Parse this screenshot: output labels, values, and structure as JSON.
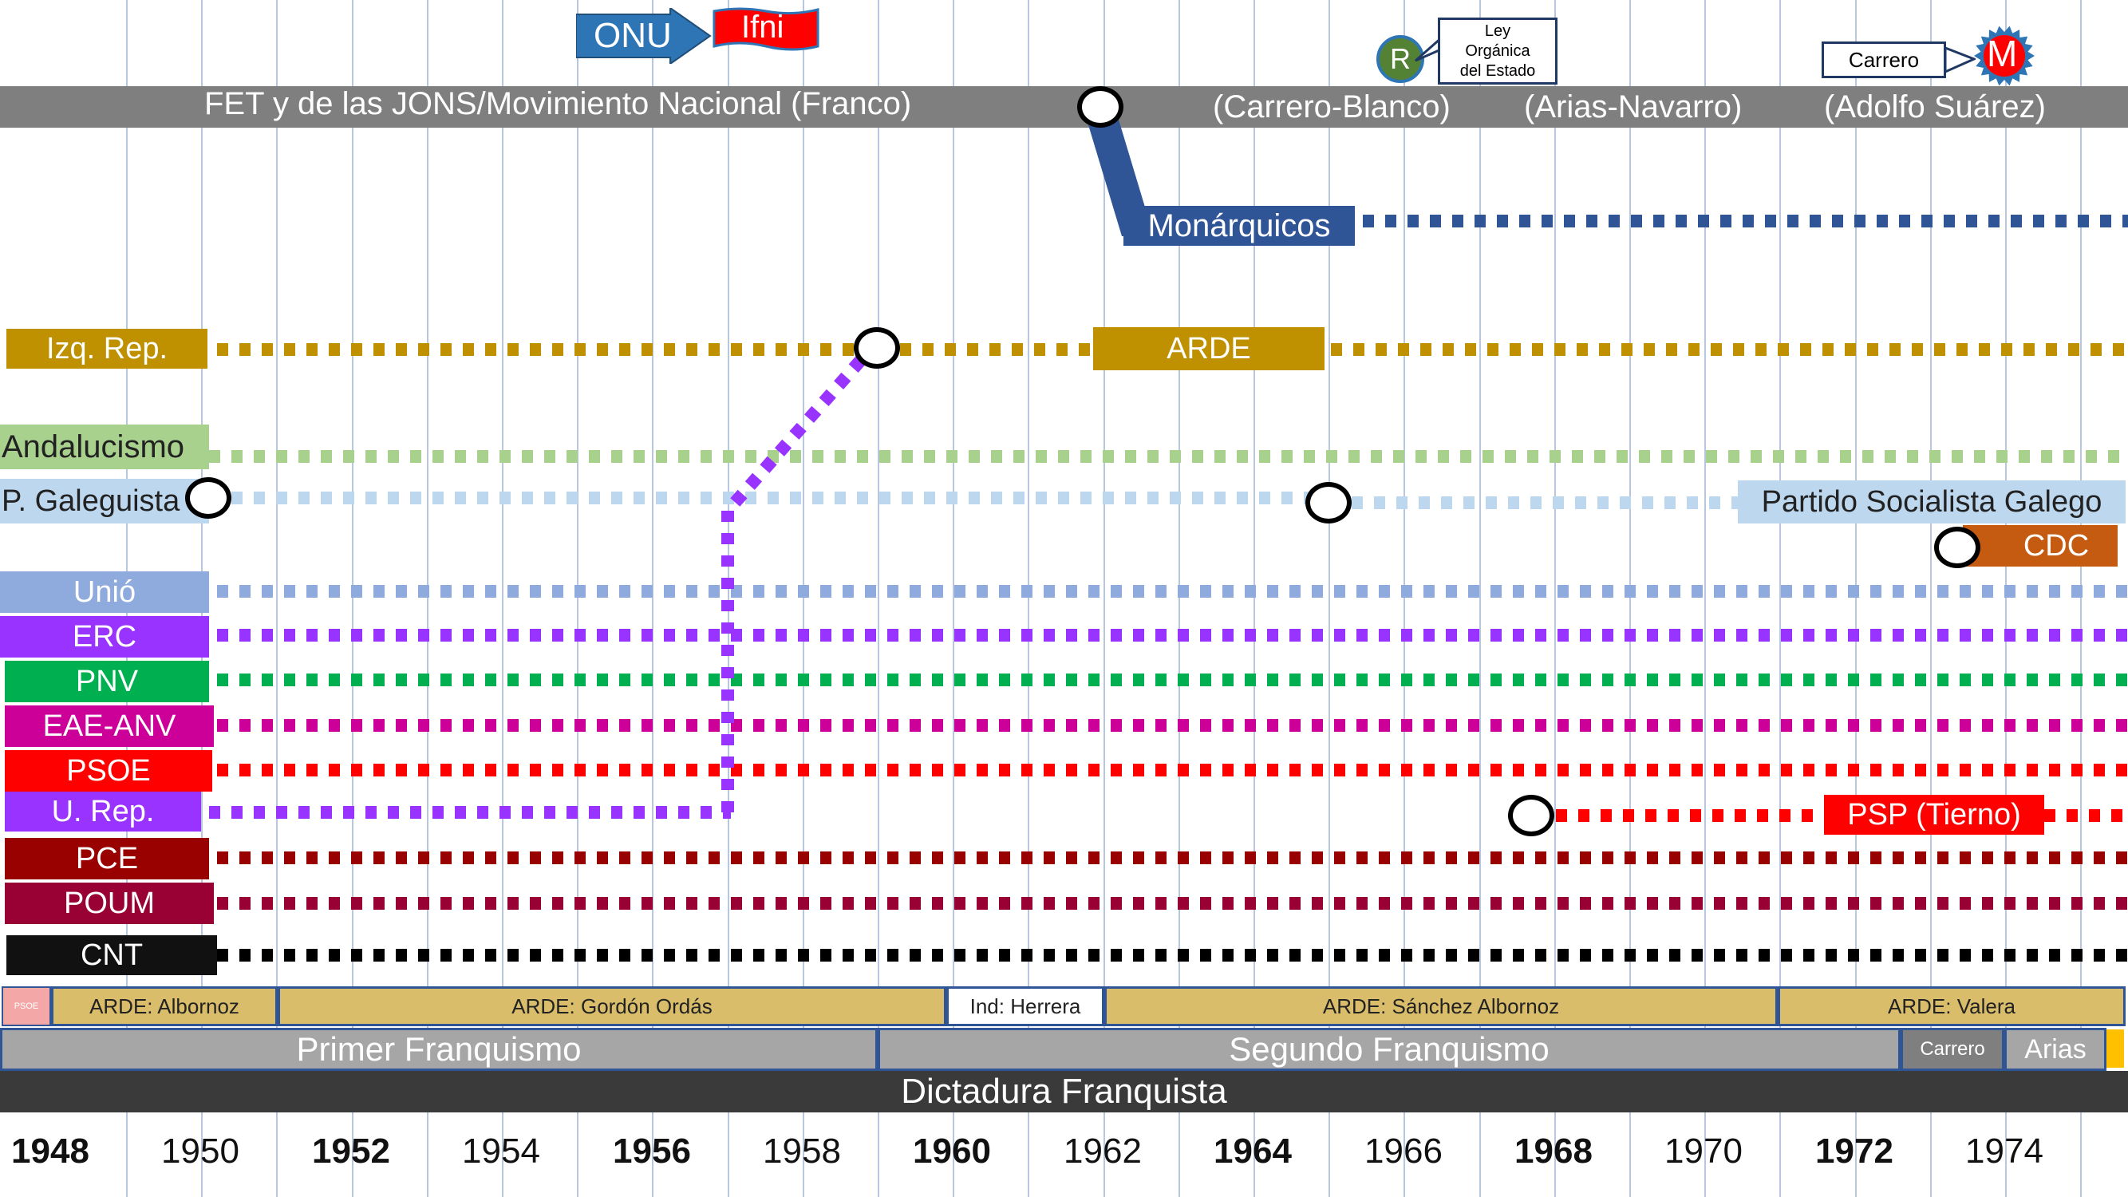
{
  "colors": {
    "movimiento": "#7f7f7f",
    "monarquicos": "#2f5597",
    "izq_rep": "#bf9000",
    "andalucismo": "#a9d18e",
    "galeguista": "#bdd7ee",
    "unio": "#8faadc",
    "erc": "#9933ff",
    "pnv": "#00b050",
    "eae": "#cc0099",
    "psoe": "#ff0000",
    "u_rep": "#9933ff",
    "pce": "#990000",
    "poum": "#990033",
    "cnt": "#000000",
    "cdc": "#c55a11",
    "arde_gov": "#d9bd6b",
    "period": "#a6a6a6",
    "dictadura": "#3a3a3a",
    "onu": "#2e75b6"
  },
  "top_events": {
    "onu": "ONU",
    "ifni": "Ifni",
    "r_badge": "R",
    "ley_organica": [
      "Ley",
      "Orgánica",
      "del Estado"
    ],
    "carrero_callout": "Carrero",
    "m_badge": "M"
  },
  "movimiento": {
    "label": "FET y de las JONS/Movimiento Nacional (Franco)",
    "phases": [
      "(Carrero-Blanco)",
      "(Arias-Navarro)",
      "(Adolfo Suárez)"
    ]
  },
  "parties": {
    "monarquicos": "Monárquicos",
    "izq_rep": "Izq. Rep.",
    "arde": "ARDE",
    "andalucismo": "Andalucismo",
    "galeguista": "P. Galeguista",
    "psg": "Partido Socialista Galego",
    "cdc": "CDC",
    "unio": "Unió",
    "erc": "ERC",
    "pnv": "PNV",
    "eae": "EAE-ANV",
    "psoe": "PSOE",
    "u_rep": "U. Rep.",
    "psp": "PSP (Tierno)",
    "pce": "PCE",
    "poum": "POUM",
    "cnt": "CNT"
  },
  "governments": [
    {
      "label": "PSOE",
      "class": "small"
    },
    {
      "label": "ARDE: Albornoz"
    },
    {
      "label": "ARDE: Gordón Ordás"
    },
    {
      "label": "Ind: Herrera"
    },
    {
      "label": "ARDE: Sánchez Albornoz"
    },
    {
      "label": "ARDE: Valera"
    }
  ],
  "periods": {
    "primer": "Primer Franquismo",
    "segundo": "Segundo Franquismo",
    "carrero": "Carrero",
    "arias": "Arias",
    "dictadura": "Dictadura Franquista"
  },
  "years": [
    {
      "label": "1948",
      "bold": true
    },
    {
      "label": "1950",
      "bold": false
    },
    {
      "label": "1952",
      "bold": true
    },
    {
      "label": "1954",
      "bold": false
    },
    {
      "label": "1956",
      "bold": true
    },
    {
      "label": "1958",
      "bold": false
    },
    {
      "label": "1960",
      "bold": true
    },
    {
      "label": "1962",
      "bold": false
    },
    {
      "label": "1964",
      "bold": true
    },
    {
      "label": "1966",
      "bold": false
    },
    {
      "label": "1968",
      "bold": true
    },
    {
      "label": "1970",
      "bold": false
    },
    {
      "label": "1972",
      "bold": true
    },
    {
      "label": "1974",
      "bold": false
    }
  ]
}
